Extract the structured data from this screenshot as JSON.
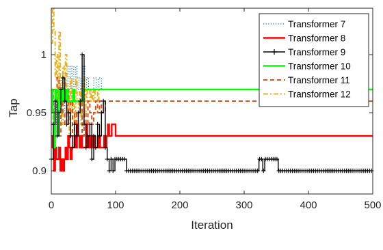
{
  "chart_data": {
    "type": "line",
    "title": "",
    "xlabel": "Iteration",
    "ylabel": "Tap",
    "xlim": [
      0,
      500
    ],
    "ylim": [
      0.88,
      1.04
    ],
    "xticks": [
      0,
      100,
      200,
      300,
      400,
      500
    ],
    "xtick_labels": [
      "0",
      "100",
      "200",
      "300",
      "400",
      "500"
    ],
    "yticks": [
      0.9,
      0.95,
      1.0
    ],
    "ytick_labels": [
      "0.9",
      "0.95",
      "1"
    ],
    "grid": false,
    "legend_position": "top-right",
    "series": [
      {
        "name": "Transformer 7",
        "color": "#0072BD",
        "style": "dotted",
        "x": [
          0,
          3,
          5,
          8,
          10,
          13,
          16,
          18,
          21,
          24,
          26,
          29,
          32,
          35,
          38,
          40,
          43,
          46,
          49,
          52,
          55,
          58,
          62,
          66,
          70,
          74,
          78,
          82,
          86,
          500
        ],
        "y": [
          0.95,
          0.96,
          0.94,
          0.97,
          0.95,
          0.98,
          0.96,
          0.97,
          0.95,
          0.97,
          0.99,
          0.96,
          0.99,
          0.97,
          0.99,
          0.97,
          0.98,
          0.96,
          0.99,
          0.97,
          0.98,
          0.97,
          0.97,
          0.98,
          0.97,
          0.98,
          0.97,
          0.97,
          0.97,
          0.97
        ]
      },
      {
        "name": "Transformer 8",
        "color": "#FF0000",
        "style": "solid",
        "x": [
          0,
          2,
          4,
          6,
          8,
          10,
          12,
          14,
          16,
          18,
          20,
          22,
          24,
          26,
          28,
          30,
          32,
          34,
          36,
          38,
          40,
          42,
          44,
          46,
          48,
          50,
          52,
          54,
          56,
          58,
          60,
          62,
          64,
          66,
          68,
          70,
          72,
          74,
          76,
          78,
          80,
          82,
          84,
          86,
          88,
          90,
          92,
          94,
          96,
          98,
          100,
          500
        ],
        "y": [
          0.93,
          0.92,
          0.9,
          0.92,
          0.91,
          0.91,
          0.92,
          0.9,
          0.91,
          0.9,
          0.91,
          0.92,
          0.91,
          0.93,
          0.92,
          0.91,
          0.92,
          0.92,
          0.93,
          0.92,
          0.94,
          0.93,
          0.92,
          0.93,
          0.92,
          0.92,
          0.92,
          0.94,
          0.92,
          0.93,
          0.92,
          0.93,
          0.92,
          0.93,
          0.92,
          0.92,
          0.92,
          0.93,
          0.92,
          0.92,
          0.92,
          0.93,
          0.92,
          0.93,
          0.94,
          0.93,
          0.93,
          0.94,
          0.94,
          0.94,
          0.93,
          0.93
        ]
      },
      {
        "name": "Transformer 9",
        "color": "#000000",
        "style": "solid-plus",
        "x": [
          0,
          3,
          6,
          9,
          12,
          15,
          18,
          21,
          24,
          27,
          30,
          33,
          36,
          39,
          42,
          45,
          48,
          51,
          54,
          57,
          60,
          63,
          66,
          69,
          72,
          75,
          78,
          81,
          84,
          87,
          90,
          93,
          96,
          99,
          102,
          105,
          108,
          111,
          114,
          117,
          120,
          320,
          323,
          326,
          329,
          332,
          335,
          338,
          341,
          344,
          347,
          350,
          353,
          500
        ],
        "y": [
          0.91,
          0.94,
          0.96,
          0.93,
          0.95,
          0.97,
          0.98,
          0.96,
          0.94,
          0.95,
          0.93,
          0.92,
          0.94,
          0.93,
          0.95,
          0.96,
          1.0,
          0.94,
          0.92,
          0.93,
          0.94,
          0.91,
          0.93,
          0.92,
          0.94,
          0.93,
          0.95,
          0.96,
          0.92,
          0.91,
          0.9,
          0.91,
          0.9,
          0.91,
          0.91,
          0.91,
          0.91,
          0.91,
          0.91,
          0.9,
          0.9,
          0.9,
          0.91,
          0.91,
          0.9,
          0.91,
          0.91,
          0.91,
          0.91,
          0.91,
          0.91,
          0.91,
          0.9,
          0.9
        ]
      },
      {
        "name": "Transformer 10",
        "color": "#00FF00",
        "style": "solid",
        "x": [
          0,
          2,
          4,
          6,
          8,
          10,
          12,
          14,
          16,
          18,
          20,
          22,
          24,
          26,
          28,
          30,
          32,
          34,
          36,
          38,
          40,
          42,
          44,
          46,
          48,
          50,
          52,
          54,
          500
        ],
        "y": [
          0.97,
          0.95,
          0.92,
          0.97,
          0.96,
          0.93,
          0.97,
          0.96,
          0.97,
          0.96,
          0.97,
          0.96,
          0.97,
          0.96,
          0.96,
          0.96,
          0.96,
          0.97,
          0.96,
          0.96,
          0.96,
          0.96,
          0.96,
          0.96,
          0.96,
          0.97,
          0.97,
          0.97,
          0.97
        ]
      },
      {
        "name": "Transformer 11",
        "color": "#D95319",
        "style": "dashed",
        "x": [
          0,
          3,
          6,
          9,
          12,
          15,
          18,
          21,
          24,
          27,
          30,
          33,
          36,
          39,
          42,
          45,
          48,
          51,
          54,
          57,
          60,
          63,
          66,
          69,
          72,
          75,
          78,
          81,
          84,
          87,
          500
        ],
        "y": [
          0.94,
          0.97,
          0.95,
          0.98,
          0.93,
          0.96,
          0.95,
          0.94,
          0.97,
          0.95,
          0.96,
          0.93,
          0.95,
          0.94,
          0.95,
          0.96,
          0.93,
          0.95,
          0.94,
          0.96,
          0.95,
          0.94,
          0.95,
          0.96,
          0.95,
          0.96,
          0.95,
          0.95,
          0.96,
          0.96,
          0.96
        ]
      },
      {
        "name": "Transformer 12",
        "color": "#EDB120",
        "style": "dashdot",
        "x": [
          0,
          2,
          4,
          6,
          8,
          10,
          12,
          14,
          16,
          18,
          20,
          22,
          24,
          26,
          28,
          30,
          32,
          34,
          36,
          38,
          40,
          42,
          44,
          46,
          48,
          50,
          52,
          54,
          56,
          58,
          60,
          62,
          64,
          66,
          68,
          70,
          72,
          74,
          76,
          78,
          80,
          82,
          500
        ],
        "y": [
          1.01,
          1.04,
          1.02,
          0.98,
          1.0,
          0.95,
          1.02,
          0.97,
          0.94,
          0.99,
          0.96,
          1.0,
          0.95,
          0.97,
          0.93,
          0.98,
          0.95,
          0.96,
          0.94,
          0.98,
          0.96,
          0.95,
          0.97,
          0.94,
          0.96,
          0.98,
          0.95,
          0.97,
          0.96,
          0.96,
          0.97,
          0.96,
          0.97,
          0.96,
          0.97,
          0.97,
          0.96,
          0.97,
          0.97,
          0.97,
          0.97,
          0.97,
          0.97
        ]
      }
    ]
  }
}
